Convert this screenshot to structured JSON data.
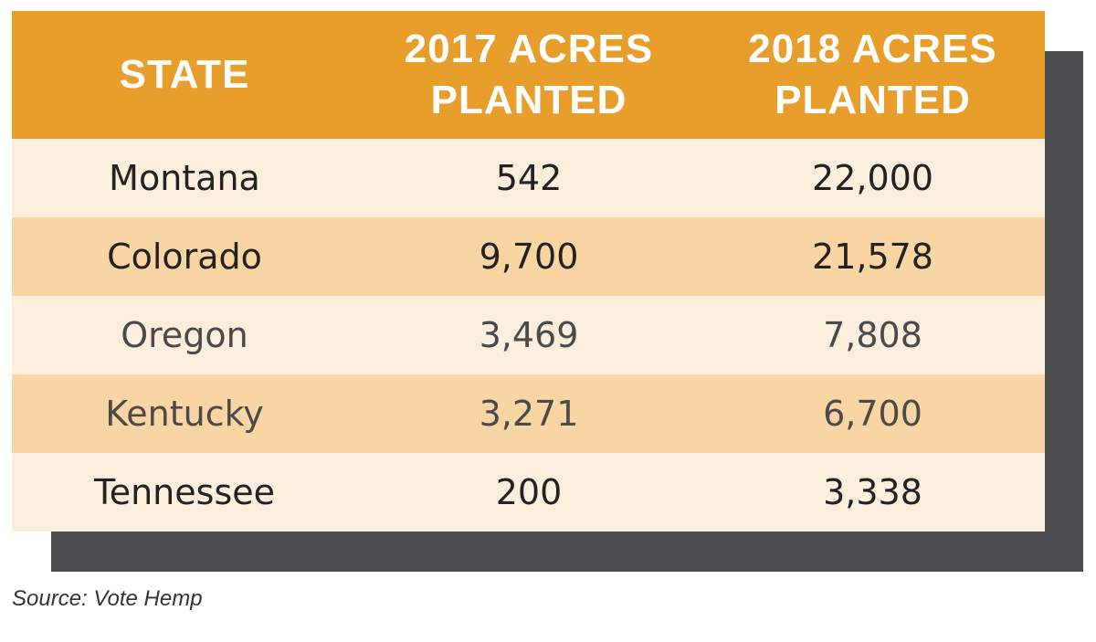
{
  "chart_data": {
    "type": "table",
    "columns": [
      [
        "STATE"
      ],
      [
        "2017 ACRES",
        "PLANTED"
      ],
      [
        "2018 ACRES",
        "PLANTED"
      ]
    ],
    "rows": [
      [
        "Montana",
        "542",
        "22,000"
      ],
      [
        "Colorado",
        "9,700",
        "21,578"
      ],
      [
        "Oregon",
        "3,469",
        "7,808"
      ],
      [
        "Kentucky",
        "3,271",
        "6,700"
      ],
      [
        "Tennessee",
        "200",
        "3,338"
      ]
    ]
  },
  "source": "Source: Vote Hemp",
  "colors": {
    "header_bg": "#e89e2b",
    "row_light": "#fbeedc",
    "row_dark": "#f8d5a2",
    "shadow": "#4d4d4f",
    "header_text": "#ffffff"
  }
}
